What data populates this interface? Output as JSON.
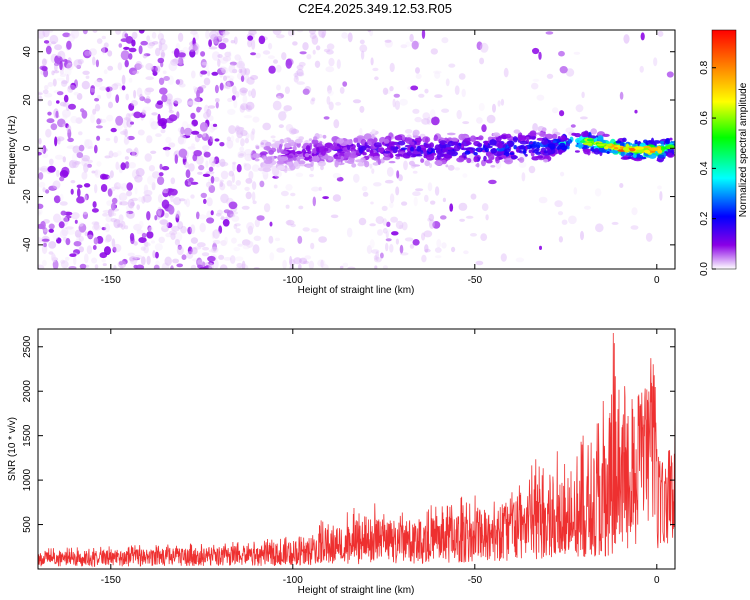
{
  "title": "C2E4.2025.349.12.53.R05",
  "chart_data": [
    {
      "type": "heatmap",
      "xlabel": "Height of straight line (km)",
      "ylabel": "Frequency (Hz)",
      "xlim": [
        -170,
        5
      ],
      "ylim": [
        -50,
        49
      ],
      "xticks": [
        -150,
        -100,
        -50,
        0
      ],
      "xtick_labels": [
        "-150",
        "-100",
        "-50",
        "0"
      ],
      "yticks": [
        -40,
        -20,
        0,
        20,
        40
      ],
      "ytick_labels": [
        "-40",
        "-20",
        "0",
        "20",
        "40"
      ],
      "colorbar": {
        "label": "Normalized spectral amplitude",
        "range": [
          0,
          0.95
        ],
        "ticks": [
          0.0,
          0.2,
          0.4,
          0.6,
          0.8
        ],
        "tick_labels": [
          "0.0",
          "0.2",
          "0.4",
          "0.6",
          "0.8"
        ],
        "colormap": [
          "#ffffff",
          "#8a00e6",
          "#0000ff",
          "#00ffff",
          "#00ff00",
          "#ffff00",
          "#ff8000",
          "#ff0000"
        ]
      },
      "signal_band": {
        "description_points_x": [
          -110,
          -90,
          -70,
          -50,
          -30,
          -20,
          -10,
          0,
          5
        ],
        "center_hz": [
          -3,
          -1,
          0,
          -1,
          1,
          3,
          0,
          -1,
          1
        ],
        "peak_amplitude": [
          0.08,
          0.15,
          0.2,
          0.25,
          0.3,
          0.55,
          0.8,
          0.75,
          0.5
        ]
      }
    },
    {
      "type": "line",
      "xlabel": "Height of straight line (km)",
      "ylabel": "SNR (10 * v/v)",
      "xlim": [
        -170,
        5
      ],
      "ylim": [
        0,
        2700
      ],
      "xticks": [
        -150,
        -100,
        -50,
        0
      ],
      "xtick_labels": [
        "-150",
        "-100",
        "-50",
        "0"
      ],
      "yticks": [
        500,
        1000,
        1500,
        2000,
        2500
      ],
      "ytick_labels": [
        "500",
        "1000",
        "1500",
        "2000",
        "2500"
      ],
      "color": "#ee3030",
      "envelope": {
        "x": [
          -170,
          -150,
          -130,
          -110,
          -100,
          -90,
          -80,
          -70,
          -60,
          -50,
          -45,
          -40,
          -35,
          -30,
          -25,
          -20,
          -15,
          -12,
          -10,
          -8,
          -5,
          -3,
          -1,
          0,
          2,
          5
        ],
        "baseline": [
          130,
          140,
          150,
          160,
          180,
          230,
          280,
          300,
          320,
          380,
          420,
          470,
          520,
          560,
          600,
          550,
          700,
          800,
          900,
          1000,
          1300,
          1500,
          1700,
          1100,
          800,
          1400
        ],
        "peak": [
          230,
          260,
          290,
          320,
          380,
          600,
          760,
          700,
          760,
          850,
          900,
          1000,
          1200,
          1450,
          1350,
          1700,
          1900,
          2700,
          2100,
          2200,
          2300,
          2500,
          2450,
          1800,
          1300,
          2050
        ]
      }
    }
  ]
}
